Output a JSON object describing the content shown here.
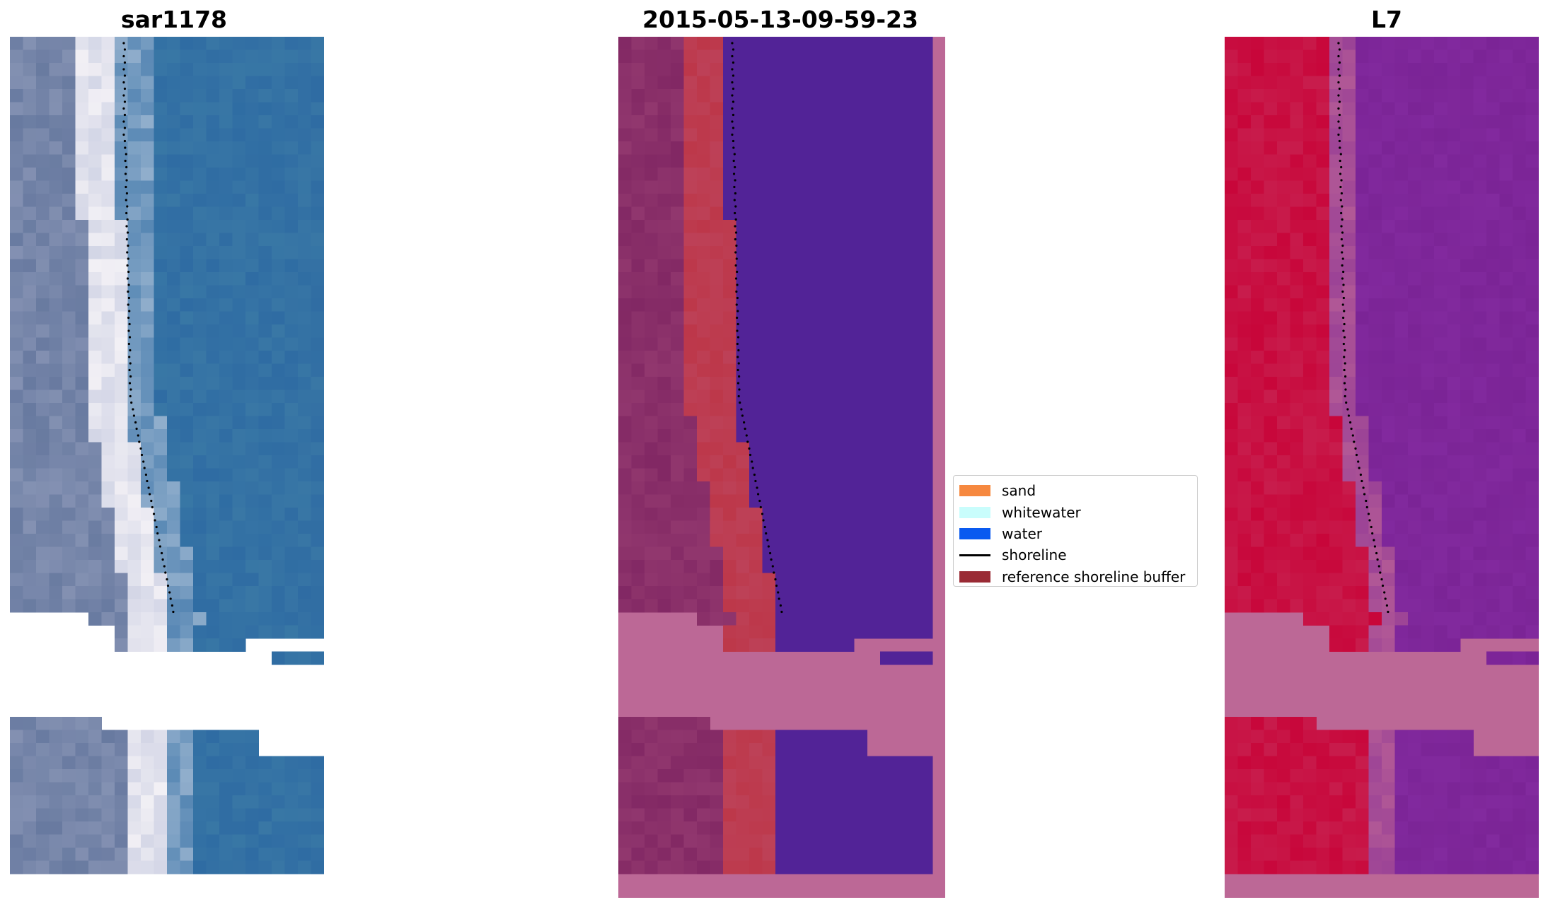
{
  "panels": [
    {
      "title": "sar1178",
      "style": "rgb"
    },
    {
      "title": "2015-05-13-09-59-23",
      "style": "classified"
    },
    {
      "title": "L7",
      "style": "index"
    }
  ],
  "legend": {
    "items": [
      {
        "label": "sand",
        "color": "#f6883f",
        "kind": "patch"
      },
      {
        "label": "whitewater",
        "color": "#c9fdfc",
        "kind": "patch"
      },
      {
        "label": "water",
        "color": "#0a5af0",
        "kind": "patch"
      },
      {
        "label": "shoreline",
        "color": "#000000",
        "kind": "line"
      },
      {
        "label": "reference shoreline buffer",
        "color": "#9a2b35",
        "kind": "patch"
      }
    ]
  },
  "colors": {
    "no_data_mask": "#bc6896",
    "classified_water": "#522397",
    "classified_buffer": "#bd3749",
    "index_land": "#c8063a",
    "index_water": "#7b2496",
    "rgb_water": "#2f6ca3",
    "rgb_surf": "#f2f0f5"
  }
}
